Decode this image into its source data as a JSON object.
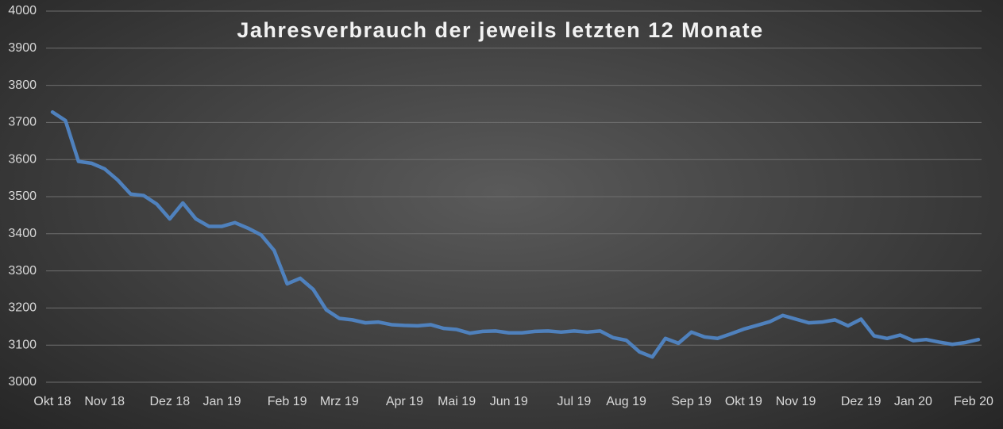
{
  "chart_data": {
    "type": "line",
    "title": "Jahresverbrauch der jeweils letzten 12 Monate",
    "categories": [
      "Okt 18",
      null,
      null,
      null,
      "Nov 18",
      null,
      null,
      null,
      null,
      "Dez 18",
      null,
      null,
      null,
      "Jan 19",
      null,
      null,
      null,
      null,
      "Feb 19",
      null,
      null,
      null,
      "Mrz 19",
      null,
      null,
      null,
      null,
      "Apr 19",
      null,
      null,
      null,
      "Mai 19",
      null,
      null,
      null,
      "Jun 19",
      null,
      null,
      null,
      null,
      "Jul 19",
      null,
      null,
      null,
      "Aug 19",
      null,
      null,
      null,
      null,
      "Sep 19",
      null,
      null,
      null,
      "Okt 19",
      null,
      null,
      null,
      "Nov 19",
      null,
      null,
      null,
      null,
      "Dez 19",
      null,
      null,
      null,
      "Jan 20",
      null,
      null,
      null,
      null,
      "Feb 20"
    ],
    "values": [
      3728,
      3705,
      3595,
      3590,
      3575,
      3545,
      3507,
      3503,
      3480,
      3440,
      3483,
      3440,
      3420,
      3420,
      3430,
      3415,
      3397,
      3355,
      3265,
      3280,
      3250,
      3195,
      3172,
      3168,
      3160,
      3162,
      3155,
      3153,
      3152,
      3155,
      3145,
      3142,
      3132,
      3137,
      3138,
      3133,
      3133,
      3137,
      3138,
      3135,
      3138,
      3135,
      3138,
      3120,
      3113,
      3082,
      3068,
      3118,
      3105,
      3135,
      3122,
      3118,
      3130,
      3143,
      3153,
      3163,
      3180,
      3170,
      3160,
      3162,
      3168,
      3152,
      3170,
      3125,
      3118,
      3127,
      3112,
      3115,
      3108,
      3102,
      3107,
      3115
    ],
    "color": "#4f81bd",
    "ylim": [
      3000,
      4000
    ],
    "yticks": [
      3000,
      3100,
      3200,
      3300,
      3400,
      3500,
      3600,
      3700,
      3800,
      3900,
      4000
    ],
    "grid": true
  }
}
